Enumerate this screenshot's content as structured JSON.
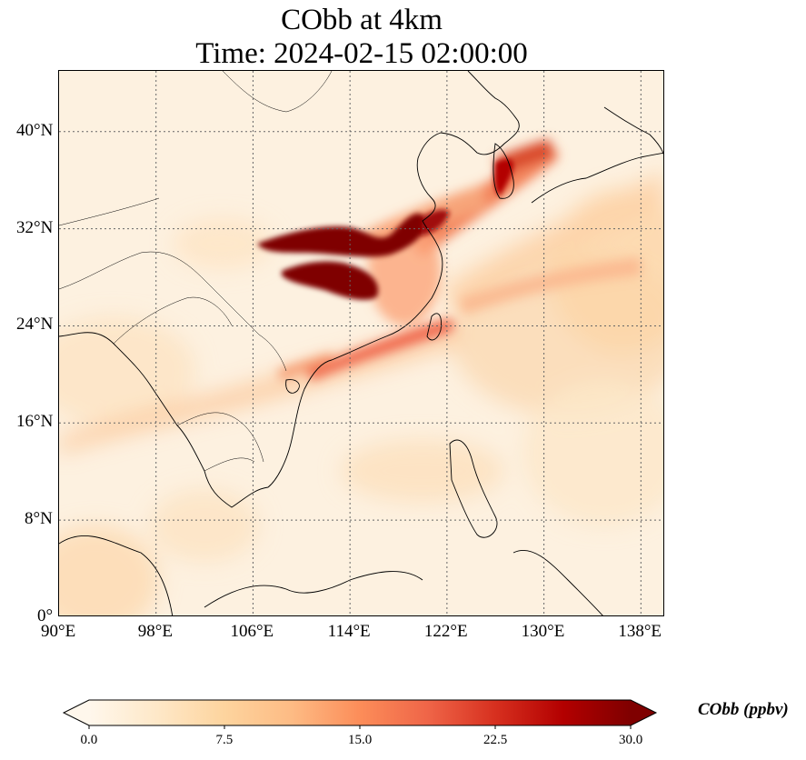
{
  "title": {
    "line1": "CObb at 4km",
    "line2": "Time: 2024-02-15 02:00:00"
  },
  "map": {
    "extent": {
      "lon": [
        90,
        140
      ],
      "lat": [
        0,
        45
      ]
    },
    "lon_ticks": [
      {
        "value": 90,
        "label": "90°E"
      },
      {
        "value": 98,
        "label": "98°E"
      },
      {
        "value": 106,
        "label": "106°E"
      },
      {
        "value": 114,
        "label": "114°E"
      },
      {
        "value": 122,
        "label": "122°E"
      },
      {
        "value": 130,
        "label": "130°E"
      },
      {
        "value": 138,
        "label": "138°E"
      }
    ],
    "lat_ticks": [
      {
        "value": 0,
        "label": "0°"
      },
      {
        "value": 8,
        "label": "8°N"
      },
      {
        "value": 16,
        "label": "16°N"
      },
      {
        "value": 24,
        "label": "24°N"
      },
      {
        "value": 32,
        "label": "32°N"
      },
      {
        "value": 40,
        "label": "40°N"
      }
    ],
    "gridlines": true,
    "colormap": "OrRd"
  },
  "colorbar": {
    "label": "CObb (ppbv)",
    "min": 0,
    "max": 30,
    "extend": "both",
    "ticks": [
      {
        "value": 0,
        "label": "0.0"
      },
      {
        "value": 7.5,
        "label": "7.5"
      },
      {
        "value": 15,
        "label": "15.0"
      },
      {
        "value": 22.5,
        "label": "22.5"
      },
      {
        "value": 30,
        "label": "30.0"
      }
    ],
    "colors": [
      "#fff7ec",
      "#fee8c8",
      "#fdd49e",
      "#fdbb84",
      "#fc8d59",
      "#ef6548",
      "#d7301f",
      "#b30000",
      "#7f0000"
    ]
  }
}
